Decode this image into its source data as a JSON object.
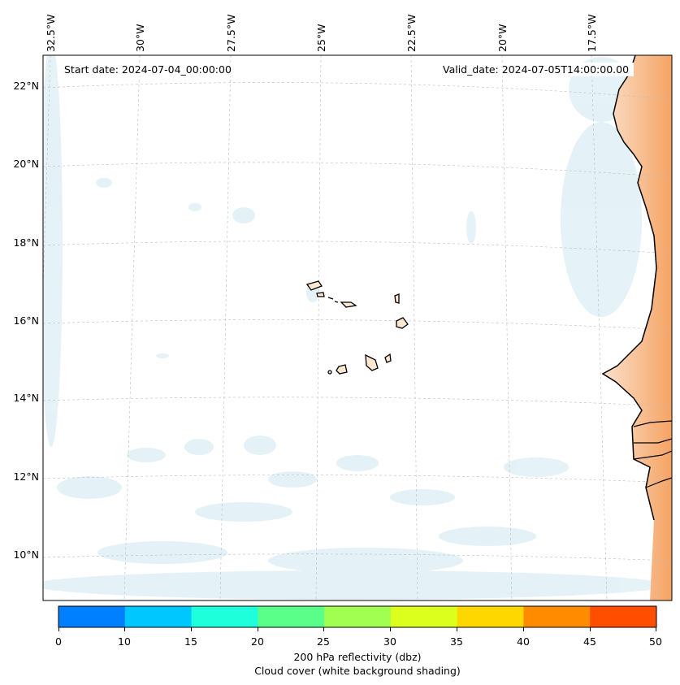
{
  "map": {
    "start_date": "Start date: 2024-07-04_00:00:00",
    "valid_date": "Valid_date: 2024-07-05T14:00:00.00",
    "lon_labels": [
      "32.5°W",
      "30°W",
      "27.5°W",
      "25°W",
      "22.5°W",
      "20°W",
      "17.5°W"
    ],
    "lat_labels": [
      "22°N",
      "20°N",
      "18°N",
      "16°N",
      "14°N",
      "12°N",
      "10°N"
    ],
    "gridlines": true
  },
  "colorbar": {
    "ticks": [
      "0",
      "10",
      "15",
      "20",
      "25",
      "30",
      "35",
      "40",
      "45",
      "50"
    ],
    "colors": [
      "#0080ff",
      "#00c8ff",
      "#1effdc",
      "#5aff8a",
      "#a0ff50",
      "#dcff1e",
      "#ffd700",
      "#ff8c00",
      "#ff4e00"
    ],
    "label": "200 hPa reflectivity (dbz)",
    "sublabel": "Cloud cover (white background shading)"
  },
  "shading": {
    "land_color": "#f4a460",
    "cloud_color": "#c9e6f0"
  }
}
